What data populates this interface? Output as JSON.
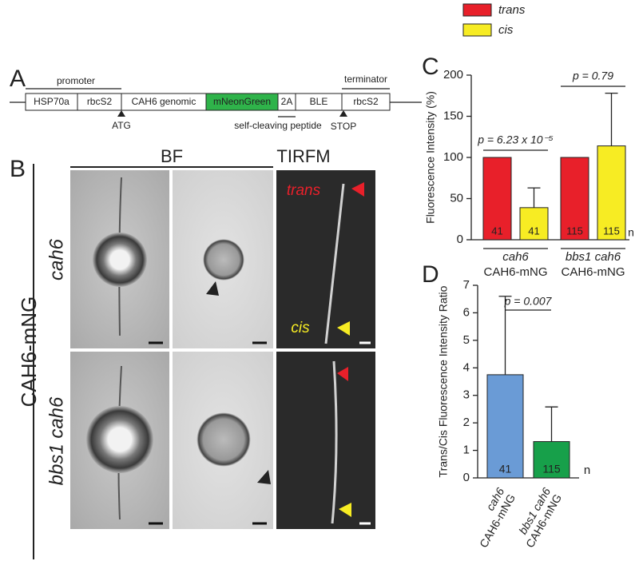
{
  "panel_a": {
    "label": "A",
    "segments": [
      "HSP70a",
      "rbcS2",
      "CAH6 genomic",
      "mNeonGreen",
      "2A",
      "BLE",
      "rbcS2"
    ],
    "promoter": "promoter",
    "terminator": "terminator",
    "start": "ATG",
    "peptide": "self-cleaving peptide",
    "stop": "STOP"
  },
  "panel_b": {
    "label": "B",
    "construct": "CAH6-mNG",
    "columns": [
      "BF",
      "TIRFM"
    ],
    "rows": [
      "cah6",
      "bbs1 cah6"
    ],
    "trans": "trans",
    "cis": "cis"
  },
  "chart_data": [
    {
      "type": "bar",
      "panel_label": "C",
      "y_label": "Fluorescence Intensity (%)",
      "categories": [
        [
          "cah6",
          "CAH6-mNG"
        ],
        [
          "bbs1 cah6",
          "CAH6-mNG"
        ]
      ],
      "series": [
        {
          "name": "trans",
          "color": "#e8202a",
          "values": [
            100,
            100
          ],
          "n": [
            41,
            115
          ]
        },
        {
          "name": "cis",
          "color": "#f7ec23",
          "values": [
            39,
            114
          ],
          "errors": [
            24,
            64
          ],
          "n": [
            41,
            115
          ]
        }
      ],
      "n_label": "n",
      "annotations": [
        "p = 6.23 x 10⁻⁵",
        "p = 0.79"
      ],
      "ylim": [
        0,
        200
      ],
      "yticks": [
        0,
        50,
        100,
        150,
        200
      ],
      "legend": "top"
    },
    {
      "type": "bar",
      "panel_label": "D",
      "y_label": "Trans/Cis Fluorescence Intensity Ratio",
      "categories": [
        [
          "cah6",
          "CAH6-mNG"
        ],
        [
          "bbs1 cah6",
          "CAH6-mNG"
        ]
      ],
      "colors": [
        "#6a9bd6",
        "#17a04a"
      ],
      "values": [
        3.75,
        1.32
      ],
      "errors": [
        2.85,
        1.26
      ],
      "n": [
        41,
        115
      ],
      "n_label": "n",
      "annotations": [
        "p = 0.007"
      ],
      "ylim": [
        0,
        7
      ],
      "yticks": [
        0,
        1,
        2,
        3,
        4,
        5,
        6,
        7
      ]
    }
  ]
}
